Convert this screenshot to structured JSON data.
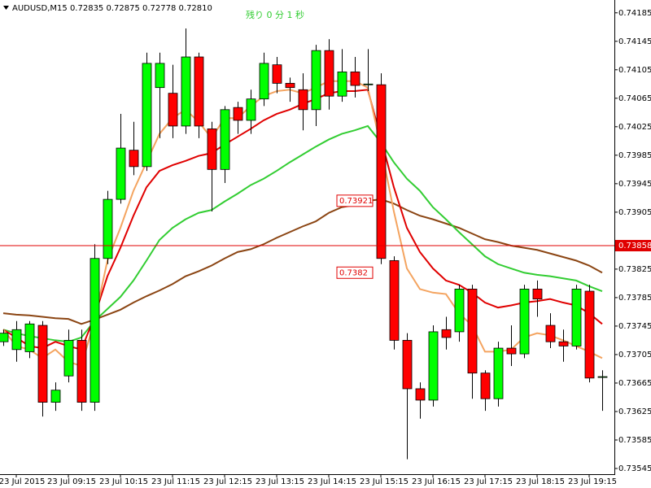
{
  "chart_data": {
    "type": "candlestick",
    "header": "AUDUSD,M15  0.72835 0.72875 0.72778 0.72810",
    "annotation": "残り 0 分 1 秒",
    "categories": [
      null,
      "23 Jul 2015",
      null,
      null,
      null,
      "23 Jul 09:15",
      null,
      null,
      null,
      "23 Jul 10:15",
      null,
      null,
      null,
      "23 Jul 11:15",
      null,
      null,
      null,
      "23 Jul 12:15",
      null,
      null,
      null,
      "23 Jul 13:15",
      null,
      null,
      null,
      "23 Jul 14:15",
      null,
      null,
      null,
      "23 Jul 15:15",
      null,
      null,
      null,
      "23 Jul 16:15",
      null,
      null,
      null,
      "23 Jul 17:15",
      null,
      null,
      null,
      "23 Jul 18:15",
      null,
      null,
      null,
      "23 Jul 19:15",
      null
    ],
    "open": [
      0.73723,
      0.73712,
      0.73709,
      0.73746,
      0.73638,
      0.73675,
      0.73725,
      0.73638,
      0.7384,
      0.73923,
      0.73992,
      0.73969,
      0.7408,
      0.74072,
      0.74026,
      0.74123,
      0.74022,
      0.73965,
      0.74052,
      0.74034,
      0.74064,
      0.74112,
      0.74086,
      0.74077,
      0.74049,
      0.74132,
      0.74068,
      0.74102,
      0.74084,
      0.74084,
      0.73837,
      0.73725,
      0.73657,
      0.73641,
      0.7374,
      0.73737,
      0.73797,
      0.73679,
      0.73643,
      0.73714,
      0.73706,
      0.73797,
      0.73746,
      0.73723,
      0.73717,
      0.73794,
      0.73674
    ],
    "high": [
      0.7374,
      0.73752,
      0.73752,
      0.73752,
      0.73666,
      0.7374,
      0.7374,
      0.7386,
      0.73935,
      0.74043,
      0.74032,
      0.74129,
      0.74129,
      0.74112,
      0.74163,
      0.74129,
      0.74032,
      0.74054,
      0.7406,
      0.74077,
      0.74129,
      0.74123,
      0.74094,
      0.741,
      0.7414,
      0.74148,
      0.74134,
      0.74123,
      0.74134,
      0.741,
      0.73843,
      0.73735,
      0.73666,
      0.73746,
      0.73758,
      0.73803,
      0.73803,
      0.73683,
      0.73723,
      0.73746,
      0.73803,
      0.73809,
      0.73763,
      0.7374,
      0.73803,
      0.73803,
      0.73683
    ],
    "low": [
      0.73717,
      0.73695,
      0.737,
      0.73618,
      0.73626,
      0.73666,
      0.73626,
      0.73626,
      0.73832,
      0.73917,
      0.73957,
      0.73963,
      0.74009,
      0.74009,
      0.74015,
      0.74009,
      0.73906,
      0.73946,
      0.74015,
      0.74015,
      0.74054,
      0.74072,
      0.7406,
      0.7402,
      0.74026,
      0.74049,
      0.7406,
      0.74066,
      0.74075,
      0.73832,
      0.73712,
      0.73558,
      0.73615,
      0.73632,
      0.73712,
      0.73723,
      0.73643,
      0.73626,
      0.73632,
      0.73689,
      0.737,
      0.73758,
      0.73714,
      0.73695,
      0.73712,
      0.73666,
      0.73626
    ],
    "close": [
      0.73735,
      0.7374,
      0.73748,
      0.73638,
      0.73655,
      0.73725,
      0.73638,
      0.7384,
      0.73923,
      0.73995,
      0.73969,
      0.74114,
      0.74114,
      0.74026,
      0.74123,
      0.74026,
      0.73965,
      0.74049,
      0.74034,
      0.74064,
      0.74114,
      0.74086,
      0.7408,
      0.74049,
      0.74132,
      0.74068,
      0.74102,
      0.74083,
      0.74085,
      0.7384,
      0.73725,
      0.73657,
      0.73641,
      0.73737,
      0.73729,
      0.73797,
      0.73679,
      0.73643,
      0.73714,
      0.73706,
      0.73797,
      0.73783,
      0.73723,
      0.73717,
      0.73797,
      0.73672,
      0.73674
    ],
    "up_color": "#00ff00",
    "down_color": "#ff0000",
    "series": [
      {
        "color": "#8b4513",
        "values": [
          0.73763,
          0.73761,
          0.7376,
          0.73758,
          0.73756,
          0.73755,
          0.73748,
          0.73754,
          0.73761,
          0.73768,
          0.73778,
          0.73787,
          0.73795,
          0.73804,
          0.73815,
          0.73822,
          0.7383,
          0.7384,
          0.73849,
          0.73853,
          0.7386,
          0.73869,
          0.73877,
          0.73885,
          0.73892,
          0.73904,
          0.73912,
          0.73915,
          0.73921,
          0.73923,
          0.73917,
          0.73908,
          0.739,
          0.73895,
          0.73889,
          0.73883,
          0.73875,
          0.73867,
          0.73863,
          0.73858,
          0.73855,
          0.73852,
          0.73847,
          0.73842,
          0.73837,
          0.7383,
          0.7382
        ]
      },
      {
        "color": "#32cd32",
        "values": [
          0.7374,
          0.73735,
          0.73731,
          0.73728,
          0.73725,
          0.73723,
          0.73729,
          0.73752,
          0.73769,
          0.73786,
          0.73809,
          0.73837,
          0.73866,
          0.73883,
          0.73895,
          0.73904,
          0.73908,
          0.7392,
          0.73931,
          0.73943,
          0.73952,
          0.73963,
          0.73975,
          0.73986,
          0.73997,
          0.74007,
          0.74015,
          0.7402,
          0.74026,
          0.74003,
          0.73975,
          0.73952,
          0.73935,
          0.73912,
          0.73895,
          0.73877,
          0.7386,
          0.73843,
          0.73832,
          0.73826,
          0.7382,
          0.73817,
          0.73815,
          0.73812,
          0.73809,
          0.73801,
          0.73794
        ]
      },
      {
        "color": "#e00000",
        "values": [
          0.7374,
          0.73729,
          0.73717,
          0.73714,
          0.73723,
          0.73717,
          0.73712,
          0.73758,
          0.73815,
          0.73855,
          0.739,
          0.7394,
          0.73963,
          0.73971,
          0.73977,
          0.73984,
          0.73988,
          0.74,
          0.74011,
          0.74022,
          0.74034,
          0.74043,
          0.74049,
          0.74057,
          0.74064,
          0.74072,
          0.74075,
          0.74075,
          0.74077,
          0.74009,
          0.7394,
          0.73883,
          0.73849,
          0.73826,
          0.73809,
          0.73803,
          0.73792,
          0.73778,
          0.73771,
          0.73774,
          0.73778,
          0.7378,
          0.73783,
          0.73778,
          0.73774,
          0.73763,
          0.73748
        ]
      },
      {
        "color": "#f4a460",
        "values": [
          0.7374,
          0.73717,
          0.73712,
          0.737,
          0.73712,
          0.73695,
          0.73689,
          0.73752,
          0.73837,
          0.73883,
          0.73935,
          0.73975,
          0.74015,
          0.74037,
          0.74049,
          0.74032,
          0.74009,
          0.74037,
          0.74037,
          0.74054,
          0.74068,
          0.74075,
          0.74077,
          0.74072,
          0.7408,
          0.74089,
          0.74089,
          0.74089,
          0.7408,
          0.73997,
          0.73906,
          0.73826,
          0.73797,
          0.73792,
          0.7379,
          0.73763,
          0.73746,
          0.73709,
          0.73709,
          0.73712,
          0.73729,
          0.73735,
          0.73732,
          0.73725,
          0.73717,
          0.73709,
          0.737
        ]
      }
    ],
    "current_price": 0.73858,
    "current_price_color": "#e00000",
    "price_labels": [
      0.73921,
      0.7382
    ],
    "ylim": [
      0.73537,
      0.74203
    ],
    "yticks": [
      0.74185,
      0.74145,
      0.74105,
      0.74065,
      0.74025,
      0.73985,
      0.73945,
      0.73905,
      0.73825,
      0.73785,
      0.73745,
      0.73705,
      0.73665,
      0.73625,
      0.73585,
      0.73545
    ]
  }
}
